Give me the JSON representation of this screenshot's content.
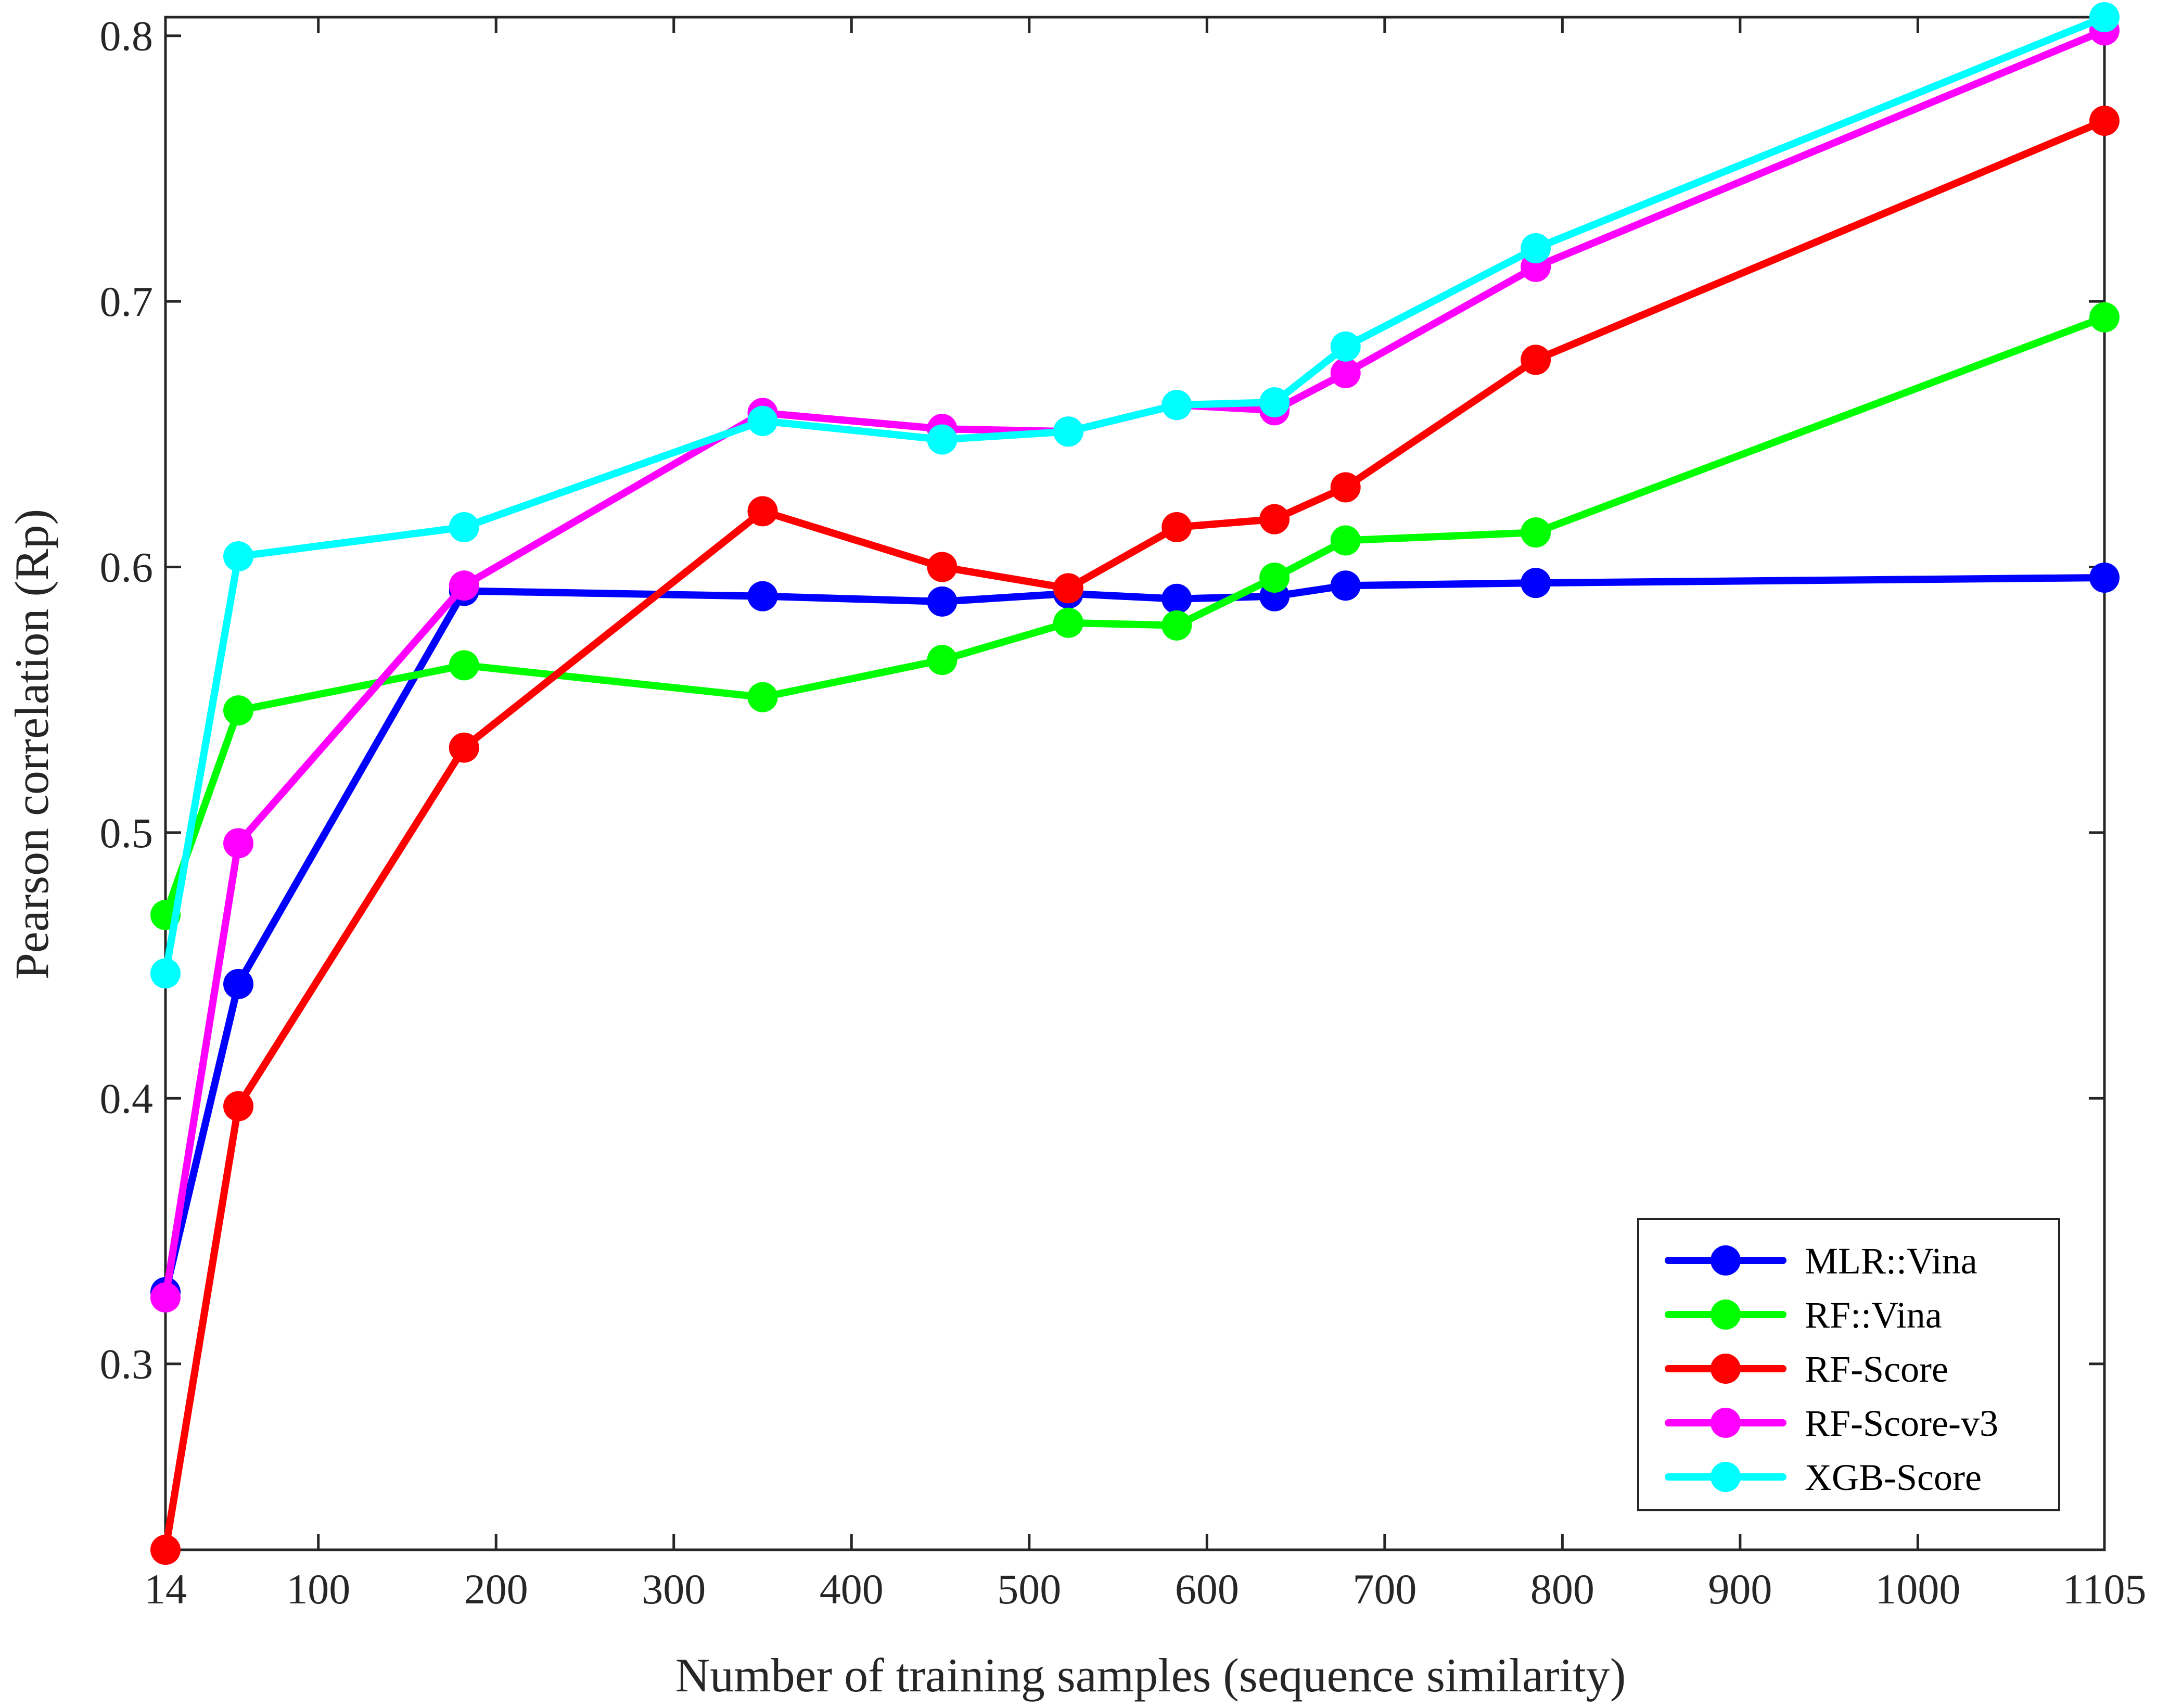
{
  "chart_data": {
    "type": "line",
    "title": "",
    "xlabel": "Number of training samples (sequence similarity)",
    "ylabel": "Pearson correlation (Rp)",
    "xlim": [
      14,
      1105
    ],
    "ylim": [
      0.23,
      0.807
    ],
    "x_ticks": [
      14,
      100,
      200,
      300,
      400,
      500,
      600,
      700,
      800,
      900,
      1000,
      1105
    ],
    "x_tick_labels": [
      "14",
      "100",
      "200",
      "300",
      "400",
      "500",
      "600",
      "700",
      "800",
      "900",
      "1000",
      "1105"
    ],
    "y_ticks": [
      0.3,
      0.4,
      0.5,
      0.6,
      0.7,
      0.8
    ],
    "y_tick_labels": [
      "0.3",
      "0.4",
      "0.5",
      "0.6",
      "0.7",
      "0.8"
    ],
    "grid": false,
    "legend_position": "bottom-right",
    "x": [
      14,
      55,
      182,
      350,
      451,
      522,
      583,
      638,
      678,
      785,
      1105
    ],
    "series": [
      {
        "name": "MLR::Vina",
        "color": "#0000ff",
        "values": [
          0.327,
          0.443,
          0.591,
          0.589,
          0.587,
          0.59,
          0.588,
          0.589,
          0.593,
          0.594,
          0.596
        ]
      },
      {
        "name": "RF::Vina",
        "color": "#00ff00",
        "values": [
          0.469,
          0.546,
          0.563,
          0.551,
          0.565,
          0.579,
          0.578,
          0.596,
          0.61,
          0.613,
          0.694
        ]
      },
      {
        "name": "RF-Score",
        "color": "#ff0000",
        "values": [
          0.23,
          0.397,
          0.532,
          0.621,
          0.6,
          0.592,
          0.615,
          0.618,
          0.63,
          0.678,
          0.768
        ]
      },
      {
        "name": "RF-Score-v3",
        "color": "#ff00ff",
        "values": [
          0.325,
          0.496,
          0.593,
          0.658,
          0.652,
          0.651,
          0.661,
          0.659,
          0.673,
          0.713,
          0.802
        ]
      },
      {
        "name": "XGB-Score",
        "color": "#00ffff",
        "values": [
          0.447,
          0.604,
          0.615,
          0.655,
          0.648,
          0.651,
          0.661,
          0.662,
          0.683,
          0.72,
          0.807
        ]
      }
    ]
  }
}
